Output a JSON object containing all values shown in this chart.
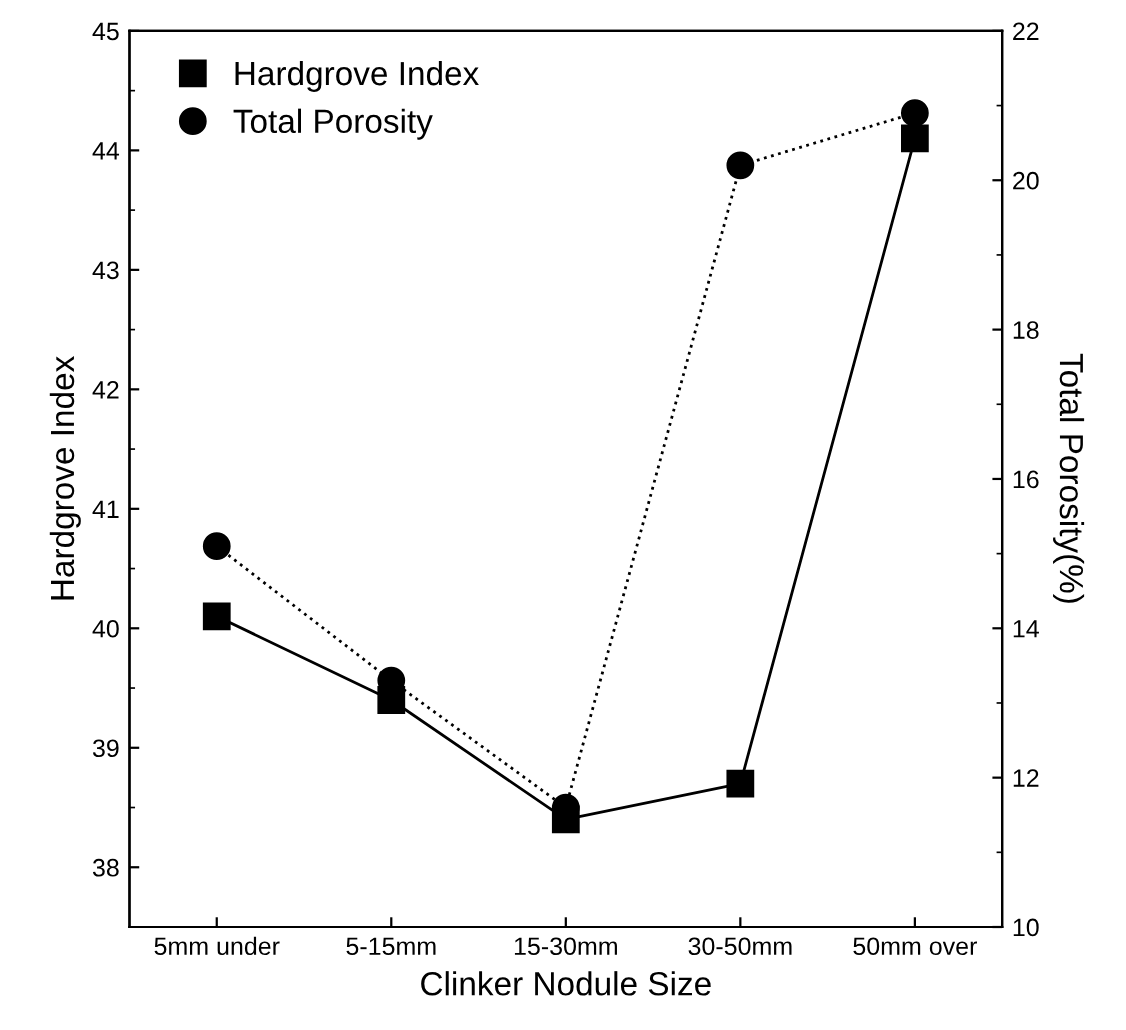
{
  "chart_data": {
    "type": "line",
    "xlabel": "Clinker Nodule Size",
    "ylabel": "Hardgrove Index",
    "y2label": "Total Porosity(%)",
    "categories": [
      "5mm under",
      "5-15mm",
      "15-30mm",
      "30-50mm",
      "50mm over"
    ],
    "series": [
      {
        "name": "Hardgrove Index",
        "color": "#000000",
        "marker": "square",
        "line_style": "solid",
        "values": [
          40.1,
          39.4,
          38.4,
          38.7,
          44.1
        ]
      },
      {
        "name": "Total Porosity",
        "color": "#000000",
        "marker": "circle",
        "line_style": "dotted",
        "axis": "y2",
        "values": [
          15.1,
          13.3,
          11.6,
          20.2,
          20.9
        ]
      }
    ],
    "ylim": [
      37.5,
      45
    ],
    "yticks": [
      38,
      39,
      40,
      41,
      42,
      43,
      44,
      45
    ],
    "y2lim": [
      10,
      22
    ],
    "y2ticks": [
      10,
      12,
      14,
      16,
      18,
      20,
      22
    ],
    "legend": "top left",
    "grid": false
  }
}
